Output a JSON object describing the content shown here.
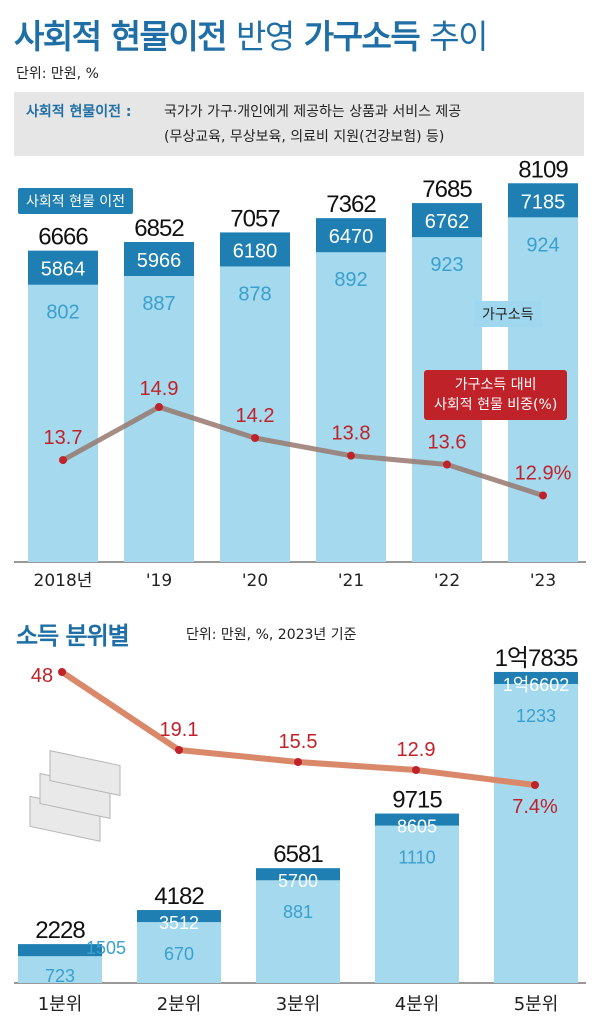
{
  "title": {
    "p1": "사회적",
    "p2": "현물이전",
    "p3": "반영",
    "p4": "가구소득",
    "p5": "추이"
  },
  "unit_top": "단위: 만원, %",
  "definition": {
    "label": "사회적 현물이전 :",
    "line1": "국가가 가구·개인에게 제공하는 상품과 서비스 제공",
    "line2": "(무상교육, 무상보육, 의료비 지원(건강보험) 등)"
  },
  "legend": {
    "in_kind": "사회적 현물 이전",
    "household": "가구소득",
    "ratio_line1": "가구소득 대비",
    "ratio_line2": "사회적 현물 비중(%)"
  },
  "section2": {
    "title": "소득 분위별",
    "unit": "단위: 만원, %, 2023년 기준"
  },
  "colors": {
    "bar": "#a5d9ee",
    "cap": "#1f7fb3",
    "line": "#d9896a",
    "point": "#c0222a",
    "title": "#1f6fa6"
  },
  "chart_data": [
    {
      "type": "bar",
      "title": "사회적 현물이전 반영 가구소득 추이",
      "categories": [
        "2018년",
        "'19",
        "'20",
        "'21",
        "'22",
        "'23"
      ],
      "total_labels": [
        "6666",
        "6852",
        "7057",
        "7362",
        "7685",
        "8109"
      ],
      "household_labels": [
        "5864",
        "5966",
        "6180",
        "6470",
        "6762",
        "7185"
      ],
      "in_kind_labels": [
        "802",
        "887",
        "878",
        "892",
        "923",
        "924"
      ],
      "ratio_labels": [
        "13.7",
        "14.9",
        "14.2",
        "13.8",
        "13.6",
        "12.9%"
      ],
      "series": [
        {
          "name": "가구소득",
          "values": [
            5864,
            5966,
            6180,
            6470,
            6762,
            7185
          ]
        },
        {
          "name": "사회적 현물 이전",
          "values": [
            802,
            887,
            878,
            892,
            923,
            924
          ]
        },
        {
          "name": "가구소득 대비 사회적 현물 비중(%)",
          "values": [
            13.7,
            14.9,
            14.2,
            13.8,
            13.6,
            12.9
          ]
        }
      ],
      "totals": [
        6666,
        6852,
        7057,
        7362,
        7685,
        8109
      ]
    },
    {
      "type": "bar",
      "title": "소득 분위별",
      "categories": [
        "1분위",
        "2분위",
        "3분위",
        "4분위",
        "5분위"
      ],
      "total_labels": [
        "2228",
        "4182",
        "6581",
        "9715",
        "1억7835"
      ],
      "household_labels": [
        "1505",
        "3512",
        "5700",
        "8605",
        "1억6602"
      ],
      "in_kind_labels": [
        "723",
        "670",
        "881",
        "1110",
        "1233"
      ],
      "ratio_labels": [
        "48",
        "19.1",
        "15.5",
        "12.9",
        "7.4%"
      ],
      "series": [
        {
          "name": "가구소득",
          "values": [
            1505,
            3512,
            5700,
            8605,
            16602
          ]
        },
        {
          "name": "사회적 현물 이전",
          "values": [
            723,
            670,
            881,
            1110,
            1233
          ]
        },
        {
          "name": "가구소득 대비 사회적 현물 비중(%)",
          "values": [
            48,
            19.1,
            15.5,
            12.9,
            7.4
          ]
        }
      ],
      "totals": [
        2228,
        4182,
        6581,
        9715,
        17835
      ]
    }
  ]
}
